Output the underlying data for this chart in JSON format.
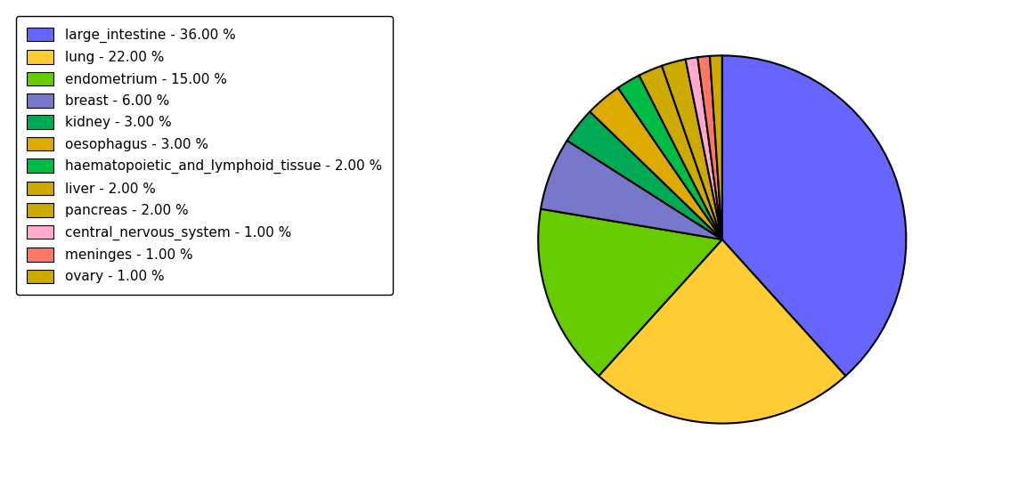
{
  "labels": [
    "large_intestine",
    "lung",
    "endometrium",
    "breast",
    "kidney",
    "oesophagus",
    "haematopoietic_and_lymphoid_tissue",
    "liver",
    "pancreas",
    "central_nervous_system",
    "meninges",
    "ovary"
  ],
  "values": [
    36.0,
    22.0,
    15.0,
    6.0,
    3.0,
    3.0,
    2.0,
    2.0,
    2.0,
    1.0,
    1.0,
    1.0
  ],
  "colors": [
    "#6666ff",
    "#ffcc33",
    "#66cc00",
    "#7777cc",
    "#00aa55",
    "#ddaa00",
    "#00bb44",
    "#ccaa00",
    "#ccaa00",
    "#ffaacc",
    "#ff7766",
    "#ccaa00"
  ],
  "legend_labels": [
    "large_intestine - 36.00 %",
    "lung - 22.00 %",
    "endometrium - 15.00 %",
    "breast - 6.00 %",
    "kidney - 3.00 %",
    "oesophagus - 3.00 %",
    "haematopoietic_and_lymphoid_tissue - 2.00 %",
    "liver - 2.00 %",
    "pancreas - 2.00 %",
    "central_nervous_system - 1.00 %",
    "meninges - 1.00 %",
    "ovary - 1.00 %"
  ],
  "background_color": "#ffffff",
  "edge_color": "#000000",
  "linewidth": 1.5,
  "startangle": 90,
  "legend_fontsize": 11
}
